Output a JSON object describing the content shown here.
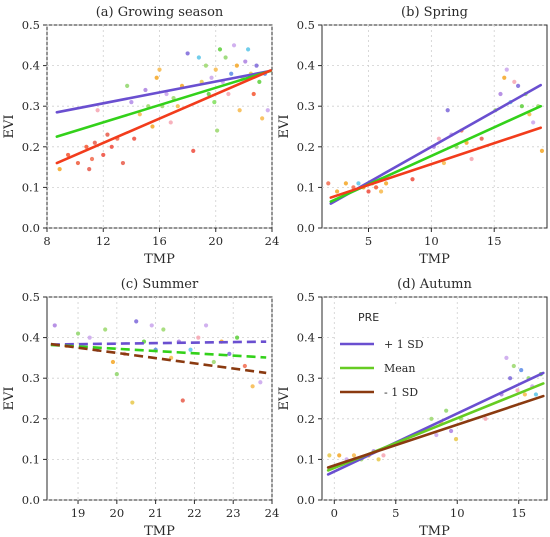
{
  "chart_data": [
    {
      "type": "scatter",
      "title": "(a) Growing season",
      "xlabel": "TMP",
      "ylabel": "EVI",
      "xlim": [
        8,
        24
      ],
      "ylim": [
        0,
        0.5
      ],
      "xticks": [
        8,
        12,
        16,
        20,
        24
      ],
      "yticks": [
        0.0,
        0.1,
        0.2,
        0.3,
        0.4,
        0.5
      ],
      "grid": true,
      "legend": false,
      "dashed": false,
      "lines": [
        {
          "color": "#6a4fd0",
          "x": [
            8.7,
            23.9
          ],
          "y": [
            0.285,
            0.387
          ]
        },
        {
          "color": "#33d11a",
          "x": [
            8.7,
            23.9
          ],
          "y": [
            0.225,
            0.387
          ]
        },
        {
          "color": "#f23c1c",
          "x": [
            8.7,
            23.9
          ],
          "y": [
            0.16,
            0.388
          ]
        }
      ],
      "points": [
        {
          "x": 8.9,
          "y": 0.145,
          "c": "#f5a623"
        },
        {
          "x": 9.5,
          "y": 0.18,
          "c": "#f5552f"
        },
        {
          "x": 10.2,
          "y": 0.16,
          "c": "#ee5a3a"
        },
        {
          "x": 10.8,
          "y": 0.2,
          "c": "#f5552f"
        },
        {
          "x": 11.0,
          "y": 0.145,
          "c": "#e6584a"
        },
        {
          "x": 11.2,
          "y": 0.17,
          "c": "#f26b4e"
        },
        {
          "x": 11.4,
          "y": 0.21,
          "c": "#e85a49"
        },
        {
          "x": 11.6,
          "y": 0.29,
          "c": "#f6a3b0"
        },
        {
          "x": 12.0,
          "y": 0.18,
          "c": "#ef4a3b"
        },
        {
          "x": 12.3,
          "y": 0.23,
          "c": "#e85a49"
        },
        {
          "x": 12.6,
          "y": 0.2,
          "c": "#ef4a3b"
        },
        {
          "x": 13.0,
          "y": 0.22,
          "c": "#f26b4e"
        },
        {
          "x": 13.4,
          "y": 0.16,
          "c": "#e85a49"
        },
        {
          "x": 13.7,
          "y": 0.35,
          "c": "#8fd66a"
        },
        {
          "x": 14.0,
          "y": 0.31,
          "c": "#b08ae8"
        },
        {
          "x": 14.2,
          "y": 0.22,
          "c": "#ef4a3b"
        },
        {
          "x": 14.6,
          "y": 0.28,
          "c": "#f7b84a"
        },
        {
          "x": 15.0,
          "y": 0.34,
          "c": "#ab7fe0"
        },
        {
          "x": 15.2,
          "y": 0.3,
          "c": "#9ad86b"
        },
        {
          "x": 15.5,
          "y": 0.25,
          "c": "#f5a623"
        },
        {
          "x": 15.8,
          "y": 0.37,
          "c": "#f5a623"
        },
        {
          "x": 16.0,
          "y": 0.39,
          "c": "#f7b84a"
        },
        {
          "x": 16.2,
          "y": 0.3,
          "c": "#a0d46e"
        },
        {
          "x": 16.5,
          "y": 0.33,
          "c": "#c9a3ec"
        },
        {
          "x": 16.8,
          "y": 0.26,
          "c": "#f6a3b0"
        },
        {
          "x": 17.0,
          "y": 0.32,
          "c": "#9ad86b"
        },
        {
          "x": 17.3,
          "y": 0.3,
          "c": "#f7b84a"
        },
        {
          "x": 17.6,
          "y": 0.35,
          "c": "#f5a623"
        },
        {
          "x": 18.0,
          "y": 0.43,
          "c": "#7b66d9"
        },
        {
          "x": 18.4,
          "y": 0.19,
          "c": "#ef4a3b"
        },
        {
          "x": 18.8,
          "y": 0.42,
          "c": "#58c4e8"
        },
        {
          "x": 19.0,
          "y": 0.36,
          "c": "#e8c84a"
        },
        {
          "x": 19.3,
          "y": 0.4,
          "c": "#9ad86b"
        },
        {
          "x": 19.5,
          "y": 0.33,
          "c": "#5ccf3a"
        },
        {
          "x": 19.7,
          "y": 0.37,
          "c": "#c9a3ec"
        },
        {
          "x": 19.9,
          "y": 0.31,
          "c": "#7fe05a"
        },
        {
          "x": 20.0,
          "y": 0.39,
          "c": "#f7b84a"
        },
        {
          "x": 20.1,
          "y": 0.24,
          "c": "#9ad86b"
        },
        {
          "x": 20.3,
          "y": 0.44,
          "c": "#5ccf3a"
        },
        {
          "x": 20.5,
          "y": 0.36,
          "c": "#c9a3ec"
        },
        {
          "x": 20.7,
          "y": 0.42,
          "c": "#8fd66a"
        },
        {
          "x": 20.9,
          "y": 0.33,
          "c": "#f6a3b0"
        },
        {
          "x": 21.1,
          "y": 0.38,
          "c": "#5a8be8"
        },
        {
          "x": 21.3,
          "y": 0.45,
          "c": "#c9a3ec"
        },
        {
          "x": 21.5,
          "y": 0.4,
          "c": "#f5a623"
        },
        {
          "x": 21.7,
          "y": 0.29,
          "c": "#f7b84a"
        },
        {
          "x": 21.9,
          "y": 0.37,
          "c": "#9ad86b"
        },
        {
          "x": 22.1,
          "y": 0.41,
          "c": "#ab7fe0"
        },
        {
          "x": 22.3,
          "y": 0.44,
          "c": "#58c4e8"
        },
        {
          "x": 22.5,
          "y": 0.38,
          "c": "#e8c84a"
        },
        {
          "x": 22.7,
          "y": 0.33,
          "c": "#f5552f"
        },
        {
          "x": 22.9,
          "y": 0.4,
          "c": "#7b66d9"
        },
        {
          "x": 23.1,
          "y": 0.36,
          "c": "#5ccf3a"
        },
        {
          "x": 23.3,
          "y": 0.27,
          "c": "#f7b84a"
        },
        {
          "x": 23.5,
          "y": 0.38,
          "c": "#5a8be8"
        },
        {
          "x": 23.7,
          "y": 0.29,
          "c": "#c9a3ec"
        }
      ]
    },
    {
      "type": "scatter",
      "title": "(b) Spring",
      "xlabel": "TMP",
      "ylabel": "EVI",
      "xlim": [
        1.3,
        19.2
      ],
      "ylim": [
        0,
        0.5
      ],
      "xticks": [
        5,
        10,
        15
      ],
      "yticks": [
        0.0,
        0.1,
        0.2,
        0.3,
        0.4,
        0.5
      ],
      "grid": true,
      "legend": false,
      "dashed": false,
      "lines": [
        {
          "color": "#6a4fd0",
          "x": [
            2.0,
            18.7
          ],
          "y": [
            0.06,
            0.352
          ]
        },
        {
          "color": "#33d11a",
          "x": [
            2.0,
            18.7
          ],
          "y": [
            0.065,
            0.3
          ]
        },
        {
          "color": "#f23c1c",
          "x": [
            2.0,
            18.7
          ],
          "y": [
            0.075,
            0.247
          ]
        }
      ],
      "points": [
        {
          "x": 1.8,
          "y": 0.11,
          "c": "#f26b4e"
        },
        {
          "x": 2.5,
          "y": 0.09,
          "c": "#f5a623"
        },
        {
          "x": 3.2,
          "y": 0.11,
          "c": "#f5a623"
        },
        {
          "x": 3.8,
          "y": 0.1,
          "c": "#f26b4e"
        },
        {
          "x": 4.2,
          "y": 0.11,
          "c": "#58c4e8"
        },
        {
          "x": 4.6,
          "y": 0.1,
          "c": "#f5a623"
        },
        {
          "x": 5.0,
          "y": 0.09,
          "c": "#ef4a3b"
        },
        {
          "x": 5.3,
          "y": 0.11,
          "c": "#9ad86b"
        },
        {
          "x": 5.6,
          "y": 0.1,
          "c": "#f5552f"
        },
        {
          "x": 6.0,
          "y": 0.09,
          "c": "#f7b84a"
        },
        {
          "x": 6.4,
          "y": 0.11,
          "c": "#f5a623"
        },
        {
          "x": 8.5,
          "y": 0.12,
          "c": "#ef4a3b"
        },
        {
          "x": 10.2,
          "y": 0.2,
          "c": "#ab7fe0"
        },
        {
          "x": 10.6,
          "y": 0.22,
          "c": "#f6a3b0"
        },
        {
          "x": 11.0,
          "y": 0.16,
          "c": "#f7b84a"
        },
        {
          "x": 11.3,
          "y": 0.29,
          "c": "#7b66d9"
        },
        {
          "x": 11.6,
          "y": 0.23,
          "c": "#c9a3ec"
        },
        {
          "x": 12.0,
          "y": 0.2,
          "c": "#9ad86b"
        },
        {
          "x": 12.4,
          "y": 0.24,
          "c": "#f26b4e"
        },
        {
          "x": 12.8,
          "y": 0.21,
          "c": "#f5a623"
        },
        {
          "x": 13.2,
          "y": 0.17,
          "c": "#f6a3b0"
        },
        {
          "x": 14.0,
          "y": 0.22,
          "c": "#e85a49"
        },
        {
          "x": 15.1,
          "y": 0.29,
          "c": "#9ad86b"
        },
        {
          "x": 15.5,
          "y": 0.33,
          "c": "#ab7fe0"
        },
        {
          "x": 15.8,
          "y": 0.37,
          "c": "#f5a623"
        },
        {
          "x": 16.0,
          "y": 0.39,
          "c": "#c9a3ec"
        },
        {
          "x": 16.3,
          "y": 0.31,
          "c": "#58c4e8"
        },
        {
          "x": 16.6,
          "y": 0.36,
          "c": "#f6a3b0"
        },
        {
          "x": 16.9,
          "y": 0.35,
          "c": "#7b66d9"
        },
        {
          "x": 17.2,
          "y": 0.3,
          "c": "#5ccf3a"
        },
        {
          "x": 17.5,
          "y": 0.33,
          "c": "#8fd66a"
        },
        {
          "x": 17.8,
          "y": 0.28,
          "c": "#f7b84a"
        },
        {
          "x": 18.1,
          "y": 0.26,
          "c": "#c9a3ec"
        },
        {
          "x": 18.5,
          "y": 0.3,
          "c": "#9ad86b"
        },
        {
          "x": 18.8,
          "y": 0.19,
          "c": "#f5a623"
        }
      ]
    },
    {
      "type": "scatter",
      "title": "(c) Summer",
      "xlabel": "TMP",
      "ylabel": "EVI",
      "xlim": [
        18.2,
        24
      ],
      "ylim": [
        0,
        0.5
      ],
      "xticks": [
        19,
        20,
        21,
        22,
        23,
        24
      ],
      "yticks": [
        0.0,
        0.1,
        0.2,
        0.3,
        0.4,
        0.5
      ],
      "grid": true,
      "legend": false,
      "dashed": true,
      "lines": [
        {
          "color": "#6a4fd0",
          "x": [
            18.3,
            23.85
          ],
          "y": [
            0.383,
            0.39
          ]
        },
        {
          "color": "#33d11a",
          "x": [
            18.3,
            23.85
          ],
          "y": [
            0.382,
            0.351
          ]
        },
        {
          "color": "#8a3a10",
          "x": [
            18.3,
            23.85
          ],
          "y": [
            0.384,
            0.313
          ]
        }
      ],
      "points": [
        {
          "x": 18.4,
          "y": 0.43,
          "c": "#ab7fe0"
        },
        {
          "x": 18.7,
          "y": 0.38,
          "c": "#f7b84a"
        },
        {
          "x": 19.0,
          "y": 0.41,
          "c": "#8fd66a"
        },
        {
          "x": 19.3,
          "y": 0.4,
          "c": "#c9a3ec"
        },
        {
          "x": 19.5,
          "y": 0.37,
          "c": "#7b66d9"
        },
        {
          "x": 19.7,
          "y": 0.42,
          "c": "#9ad86b"
        },
        {
          "x": 19.9,
          "y": 0.34,
          "c": "#f5a623"
        },
        {
          "x": 20.0,
          "y": 0.31,
          "c": "#8fd66a"
        },
        {
          "x": 20.2,
          "y": 0.36,
          "c": "#f6a3b0"
        },
        {
          "x": 20.4,
          "y": 0.24,
          "c": "#e8c84a"
        },
        {
          "x": 20.5,
          "y": 0.44,
          "c": "#7b66d9"
        },
        {
          "x": 20.7,
          "y": 0.39,
          "c": "#5ccf3a"
        },
        {
          "x": 20.9,
          "y": 0.43,
          "c": "#c9a3ec"
        },
        {
          "x": 21.0,
          "y": 0.37,
          "c": "#5a8be8"
        },
        {
          "x": 21.2,
          "y": 0.42,
          "c": "#9ad86b"
        },
        {
          "x": 21.4,
          "y": 0.35,
          "c": "#f7b84a"
        },
        {
          "x": 21.6,
          "y": 0.39,
          "c": "#ab7fe0"
        },
        {
          "x": 21.7,
          "y": 0.245,
          "c": "#e85a49"
        },
        {
          "x": 21.9,
          "y": 0.37,
          "c": "#58c4e8"
        },
        {
          "x": 22.1,
          "y": 0.4,
          "c": "#f6a3b0"
        },
        {
          "x": 22.3,
          "y": 0.43,
          "c": "#c9a3ec"
        },
        {
          "x": 22.5,
          "y": 0.34,
          "c": "#9ad86b"
        },
        {
          "x": 22.7,
          "y": 0.39,
          "c": "#f5a623"
        },
        {
          "x": 22.9,
          "y": 0.36,
          "c": "#7b66d9"
        },
        {
          "x": 23.1,
          "y": 0.4,
          "c": "#5ccf3a"
        },
        {
          "x": 23.3,
          "y": 0.33,
          "c": "#f26b4e"
        },
        {
          "x": 23.5,
          "y": 0.28,
          "c": "#f7b84a"
        },
        {
          "x": 23.7,
          "y": 0.29,
          "c": "#c9a3ec"
        }
      ]
    },
    {
      "type": "scatter",
      "title": "(d) Autumn",
      "xlabel": "TMP",
      "ylabel": "EVI",
      "xlim": [
        -1,
        17.3
      ],
      "ylim": [
        0,
        0.5
      ],
      "xticks": [
        0,
        5,
        10,
        15
      ],
      "yticks": [
        0.0,
        0.1,
        0.2,
        0.3,
        0.4,
        0.5
      ],
      "grid": true,
      "legend": true,
      "legend_title": "PRE",
      "legend_entries": [
        {
          "label": "+ 1 SD",
          "color": "#6a4fd0"
        },
        {
          "label": "Mean",
          "color": "#66cc22"
        },
        {
          "label": "- 1 SD",
          "color": "#8a3a10"
        }
      ],
      "dashed": false,
      "lines": [
        {
          "color": "#6a4fd0",
          "x": [
            -0.5,
            17.0
          ],
          "y": [
            0.063,
            0.313
          ]
        },
        {
          "color": "#66cc22",
          "x": [
            -0.5,
            17.0
          ],
          "y": [
            0.073,
            0.287
          ]
        },
        {
          "color": "#8a3a10",
          "x": [
            -0.5,
            17.0
          ],
          "y": [
            0.08,
            0.256
          ]
        }
      ],
      "points": [
        {
          "x": -0.4,
          "y": 0.11,
          "c": "#e8c84a"
        },
        {
          "x": 0.4,
          "y": 0.11,
          "c": "#f5a623"
        },
        {
          "x": 1.0,
          "y": 0.1,
          "c": "#c9a3ec"
        },
        {
          "x": 1.6,
          "y": 0.11,
          "c": "#f7b84a"
        },
        {
          "x": 2.2,
          "y": 0.1,
          "c": "#9ad86b"
        },
        {
          "x": 2.8,
          "y": 0.11,
          "c": "#f5a623"
        },
        {
          "x": 3.2,
          "y": 0.12,
          "c": "#ab7fe0"
        },
        {
          "x": 3.6,
          "y": 0.1,
          "c": "#e8c84a"
        },
        {
          "x": 4.0,
          "y": 0.11,
          "c": "#f6a3b0"
        },
        {
          "x": 7.9,
          "y": 0.2,
          "c": "#9ad86b"
        },
        {
          "x": 8.3,
          "y": 0.16,
          "c": "#c9a3ec"
        },
        {
          "x": 8.7,
          "y": 0.19,
          "c": "#f7b84a"
        },
        {
          "x": 9.1,
          "y": 0.22,
          "c": "#8fd66a"
        },
        {
          "x": 9.5,
          "y": 0.17,
          "c": "#ab7fe0"
        },
        {
          "x": 9.9,
          "y": 0.15,
          "c": "#e8c84a"
        },
        {
          "x": 10.3,
          "y": 0.2,
          "c": "#9ad86b"
        },
        {
          "x": 12.3,
          "y": 0.2,
          "c": "#f6a3b0"
        },
        {
          "x": 13.6,
          "y": 0.26,
          "c": "#ab7fe0"
        },
        {
          "x": 14.0,
          "y": 0.35,
          "c": "#c9a3ec"
        },
        {
          "x": 14.3,
          "y": 0.3,
          "c": "#7b66d9"
        },
        {
          "x": 14.6,
          "y": 0.33,
          "c": "#9ad86b"
        },
        {
          "x": 14.9,
          "y": 0.27,
          "c": "#f6a3b0"
        },
        {
          "x": 15.2,
          "y": 0.32,
          "c": "#5a8be8"
        },
        {
          "x": 15.5,
          "y": 0.26,
          "c": "#f7b84a"
        },
        {
          "x": 15.8,
          "y": 0.3,
          "c": "#8fd66a"
        },
        {
          "x": 16.1,
          "y": 0.28,
          "c": "#c9a3ec"
        },
        {
          "x": 16.4,
          "y": 0.26,
          "c": "#58c4e8"
        },
        {
          "x": 16.8,
          "y": 0.31,
          "c": "#5ccf3a"
        }
      ]
    }
  ]
}
